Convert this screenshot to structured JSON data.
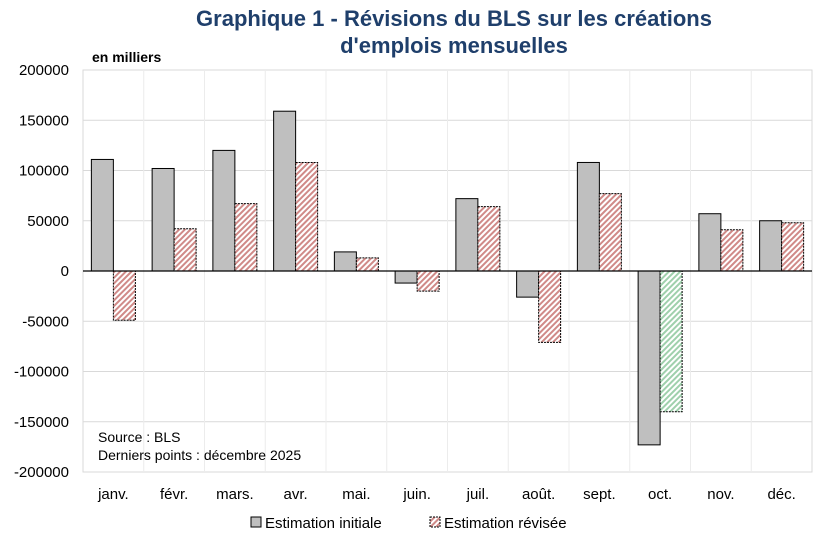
{
  "chart_data": {
    "type": "bar",
    "title": "Graphique 1 - Révisions du BLS sur les créations d'emplois mensuelles",
    "title_lines": [
      "Graphique 1 - Révisions du BLS sur les créations",
      "d'emplois mensuelles"
    ],
    "ylabel": "en milliers",
    "ylim": [
      -200000,
      200000
    ],
    "yticks": [
      200000,
      150000,
      100000,
      50000,
      0,
      -50000,
      -100000,
      -150000,
      -200000
    ],
    "grid": true,
    "legend_position": "bottom",
    "categories": [
      "janv.",
      "févr.",
      "mars.",
      "avr.",
      "mai.",
      "juin.",
      "juil.",
      "août.",
      "sept.",
      "oct.",
      "nov.",
      "déc."
    ],
    "series": [
      {
        "name": "Estimation initiale",
        "color": "#bfbfbf",
        "values": [
          111000,
          102000,
          120000,
          159000,
          19000,
          -12000,
          72000,
          -26000,
          108000,
          -173000,
          57000,
          50000
        ]
      },
      {
        "name": "Estimation révisée",
        "color": "#c0504d",
        "highlight_color": "#7fbf8f",
        "highlight_category": "oct.",
        "values": [
          -49000,
          42000,
          67000,
          108000,
          13000,
          -20000,
          64000,
          -71000,
          77000,
          -140000,
          41000,
          48000
        ]
      }
    ],
    "annotations": [
      "Source : BLS",
      "Derniers points : décembre 2025"
    ]
  }
}
